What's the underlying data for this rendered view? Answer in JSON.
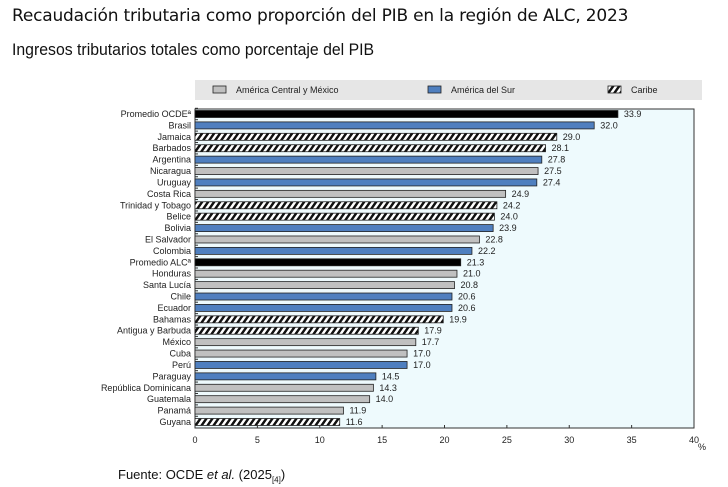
{
  "title": "Recaudación tributaria como proporción del PIB en la región de ALC, 2023",
  "subtitle": "Ingresos tributarios totales como porcentaje del PIB",
  "source": {
    "prefix": "Fuente: OCDE ",
    "italic": "et al.",
    "year": " (2025",
    "ref": "[4]",
    "close": ")"
  },
  "colors": {
    "central": "#c0c0c0",
    "sur": "#4f7fbf",
    "caribe": "hatched black/white",
    "average": "#000000",
    "plot_bg": "#eefafd",
    "legend_bg": "#e6e6e6"
  },
  "chart_data": {
    "type": "bar",
    "orientation": "horizontal",
    "title": "Ingresos tributarios totales como porcentaje del PIB",
    "xlabel": "%",
    "xlim": [
      0,
      40
    ],
    "xticks": [
      0,
      5,
      10,
      15,
      20,
      25,
      30,
      35,
      40
    ],
    "legend": {
      "placement": "top",
      "entries": [
        {
          "key": "central",
          "label": "América Central y México"
        },
        {
          "key": "sur",
          "label": "América del Sur"
        },
        {
          "key": "caribe",
          "label": "Caribe"
        }
      ]
    },
    "categories": [
      "Promedio OCDEª",
      "Brasil",
      "Jamaica",
      "Barbados",
      "Argentina",
      "Nicaragua",
      "Uruguay",
      "Costa Rica",
      "Trinidad y Tobago",
      "Belice",
      "Bolivia",
      "El Salvador",
      "Colombia",
      "Promedio ALCª",
      "Honduras",
      "Santa Lucía",
      "Chile",
      "Ecuador",
      "Bahamas",
      "Antigua y Barbuda",
      "México",
      "Cuba",
      "Perú",
      "Paraguay",
      "República Dominicana",
      "Guatemala",
      "Panamá",
      "Guyana"
    ],
    "values": [
      33.9,
      32.0,
      29.0,
      28.1,
      27.8,
      27.5,
      27.4,
      24.9,
      24.2,
      24.0,
      23.9,
      22.8,
      22.2,
      21.3,
      21.0,
      20.8,
      20.6,
      20.6,
      19.9,
      17.9,
      17.7,
      17.0,
      17.0,
      14.5,
      14.3,
      14.0,
      11.9,
      11.6
    ],
    "groups": [
      "average",
      "sur",
      "caribe",
      "caribe",
      "sur",
      "central",
      "sur",
      "central",
      "caribe",
      "caribe",
      "sur",
      "central",
      "sur",
      "average",
      "central",
      "central",
      "sur",
      "sur",
      "caribe",
      "caribe",
      "central",
      "central",
      "sur",
      "sur",
      "central",
      "central",
      "central",
      "caribe"
    ],
    "value_labels": [
      "33.9",
      "32.0",
      "29.0",
      "28.1",
      "27.8",
      "27.5",
      "27.4",
      "24.9",
      "24.2",
      "24.0",
      "23.9",
      "22.8",
      "22.2",
      "21.3",
      "21.0",
      "20.8",
      "20.6",
      "20.6",
      "19.9",
      "17.9",
      "17.7",
      "17.0",
      "17.0",
      "14.5",
      "14.3",
      "14.0",
      "11.9",
      "11.6"
    ]
  }
}
